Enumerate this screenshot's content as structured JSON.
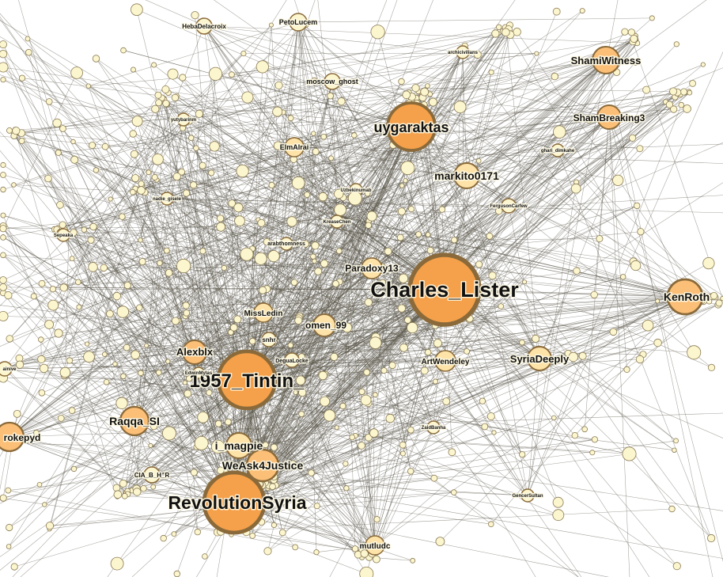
{
  "graph": {
    "colors": {
      "node_light": "#fcf6cf",
      "node_mid": "#fde3a8",
      "node_orange": "#fbbf77",
      "node_hub": "#f5a04a",
      "node_stroke": "#8a6a3a",
      "edge": "#5a5548"
    },
    "labels": [
      "Charles_Lister",
      "1957_Tintin_",
      "RevolutionSyria",
      "uygaraktas",
      "markito0171",
      "KenRoth",
      "Raqqa_SI",
      "WeAsk4Justice",
      "i_magpie",
      "ShamiWitness",
      "ShamBreaking3",
      "SyriaDeeply",
      "Paradoxy13",
      "omen_99",
      "Alexblx",
      "MissLedin",
      "ArtWendeley",
      "mutludc",
      "rokepyd",
      "moscow_ghost",
      "ElmAlrai",
      "PetoLucem",
      "HebaDelacroix",
      "CIA_B_H_R",
      "snhr",
      "DeguaLocke",
      "archicivilians",
      "yutybarinm",
      "ghari_dimkahe",
      "Uzbekinumab",
      "KreaseChen",
      "FergusonCarfew",
      "arabthomness",
      "nadie_gisele",
      "Sepeaka",
      "ZaidBanha",
      "GencerSultan",
      "EdwinMylas",
      "ainive"
    ]
  }
}
